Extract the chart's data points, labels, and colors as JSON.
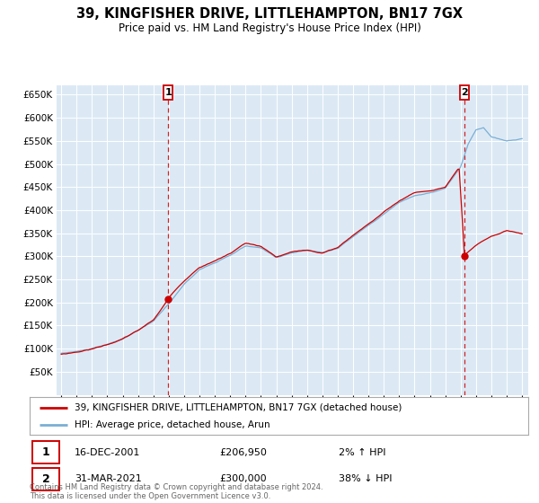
{
  "title": "39, KINGFISHER DRIVE, LITTLEHAMPTON, BN17 7GX",
  "subtitle": "Price paid vs. HM Land Registry's House Price Index (HPI)",
  "legend_line1": "39, KINGFISHER DRIVE, LITTLEHAMPTON, BN17 7GX (detached house)",
  "legend_line2": "HPI: Average price, detached house, Arun",
  "annotation1_label": "1",
  "annotation1_date": "16-DEC-2001",
  "annotation1_price": "£206,950",
  "annotation1_hpi": "2% ↑ HPI",
  "annotation2_label": "2",
  "annotation2_date": "31-MAR-2021",
  "annotation2_price": "£300,000",
  "annotation2_hpi": "38% ↓ HPI",
  "footer": "Contains HM Land Registry data © Crown copyright and database right 2024.\nThis data is licensed under the Open Government Licence v3.0.",
  "hpi_color": "#7bafd4",
  "price_color": "#cc0000",
  "annotation_color": "#cc0000",
  "plot_bg_color": "#dce9f5",
  "grid_color": "#ffffff",
  "ylim": [
    0,
    670000
  ],
  "ytick_step": 50000,
  "sale1_x_year": 2001.96,
  "sale1_y": 206950,
  "sale2_x_year": 2021.25,
  "sale2_y": 300000,
  "xmin": 1994.7,
  "xmax": 2025.4
}
